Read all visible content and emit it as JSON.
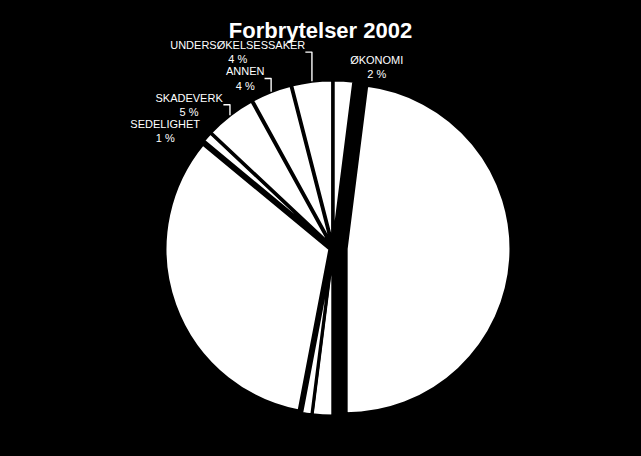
{
  "chart_data": {
    "type": "pie",
    "title": "Forbrytelser 2002",
    "categories": [
      "ØKONOMI",
      null,
      null,
      null,
      null,
      "SEDELIGHET",
      "SKADEVERK",
      "ANNEN",
      "UNDERSØKELSESSAKER"
    ],
    "values": [
      2,
      48,
      2,
      1,
      33,
      1,
      5,
      4,
      4
    ],
    "value_labels": [
      "2 %",
      null,
      null,
      null,
      null,
      "1 %",
      "5 %",
      "4 %",
      "4 %"
    ],
    "data_labels": true,
    "color": "#ffffff"
  }
}
